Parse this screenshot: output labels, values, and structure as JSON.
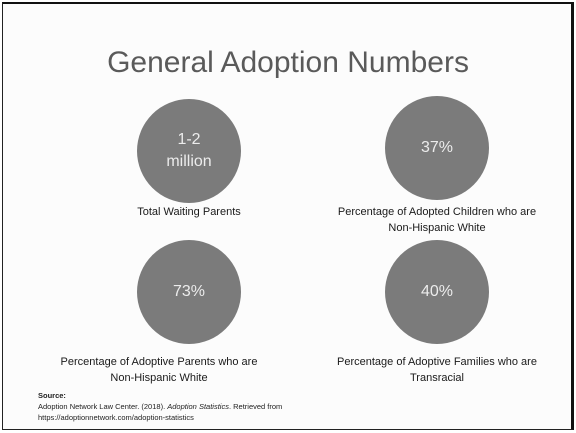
{
  "title": "General Adoption Numbers",
  "stats": [
    {
      "value": "1-2 million",
      "label": [
        "Total Waiting Parents"
      ]
    },
    {
      "value": "37%",
      "label": [
        "Percentage of Adopted Children who are",
        "Non-Hispanic White"
      ]
    },
    {
      "value": "73%",
      "label": [
        "Percentage of Adoptive Parents who are",
        "Non-Hispanic White"
      ]
    },
    {
      "value": "40%",
      "label": [
        "Percentage of Adoptive Families who are",
        "Transracial"
      ]
    }
  ],
  "source": {
    "heading": "Source:",
    "citation_start": "Adoption Network Law Center. (2018).",
    "citation_title": "Adoption Statistics",
    "citation_end": ". Retrieved from",
    "url": "https://adoptionnetwork.com/adoption-statistics"
  }
}
